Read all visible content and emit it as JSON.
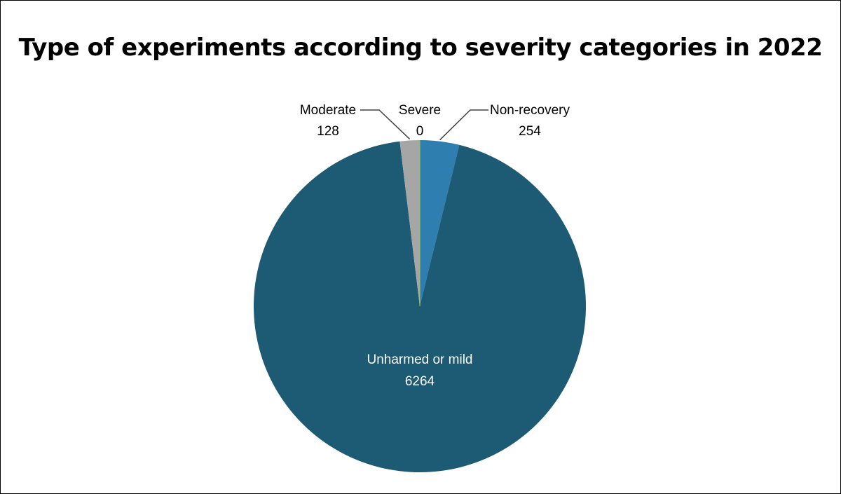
{
  "chart_data": {
    "type": "pie",
    "title": "Type of experiments according to severity categories in 2022",
    "slices": [
      {
        "name": "Non-recovery",
        "value": 254,
        "color": "#2e7eaf"
      },
      {
        "name": "Unharmed or mild",
        "value": 6264,
        "color": "#1d5a73"
      },
      {
        "name": "Moderate",
        "value": 128,
        "color": "#a6a6a6"
      },
      {
        "name": "Severe",
        "value": 0,
        "color": "#9bbb59"
      }
    ],
    "start_angle_deg": 0,
    "direction": "clockwise",
    "legend": "none",
    "data_labels": "category name and value"
  }
}
